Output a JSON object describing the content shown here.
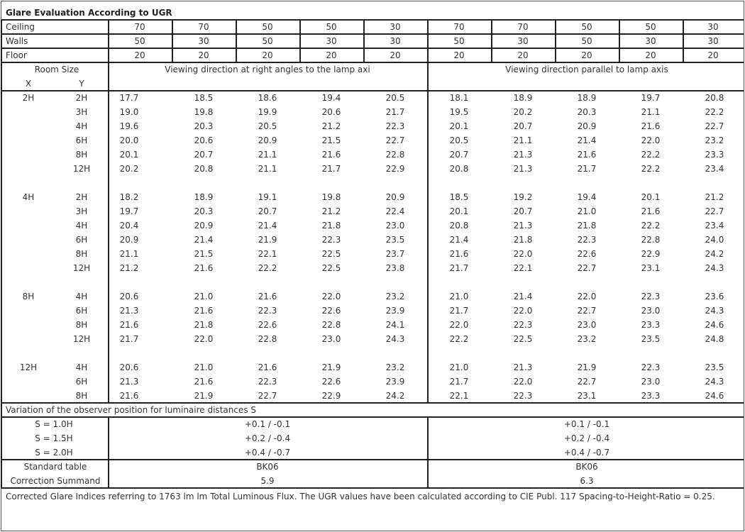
{
  "title": "Glare Evaluation According to UGR",
  "reflectances": [
    {
      "label": "Ceiling",
      "values": [
        "70",
        "70",
        "50",
        "50",
        "30",
        "70",
        "70",
        "50",
        "50",
        "30"
      ]
    },
    {
      "label": "Walls",
      "values": [
        "50",
        "30",
        "50",
        "30",
        "30",
        "50",
        "30",
        "50",
        "30",
        "30"
      ]
    },
    {
      "label": "Floor",
      "values": [
        "20",
        "20",
        "20",
        "20",
        "20",
        "20",
        "20",
        "20",
        "20",
        "20"
      ]
    }
  ],
  "room_size": {
    "label": "Room Size",
    "x": "X",
    "y": "Y"
  },
  "direction_headers": [
    "Viewing direction at right angles to the lamp axi",
    "Viewing direction parallel to lamp axis"
  ],
  "groups": [
    {
      "x": "2H",
      "rows": [
        {
          "y": "2H",
          "values": [
            "17.7",
            "18.5",
            "18.6",
            "19.4",
            "20.5",
            "18.1",
            "18.9",
            "18.9",
            "19.7",
            "20.8"
          ]
        },
        {
          "y": "3H",
          "values": [
            "19.0",
            "19.8",
            "19.9",
            "20.6",
            "21.7",
            "19.5",
            "20.2",
            "20.3",
            "21.1",
            "22.2"
          ]
        },
        {
          "y": "4H",
          "values": [
            "19.6",
            "20.3",
            "20.5",
            "21.2",
            "22.3",
            "20.1",
            "20.7",
            "20.9",
            "21.6",
            "22.7"
          ]
        },
        {
          "y": "6H",
          "values": [
            "20.0",
            "20.6",
            "20.9",
            "21.5",
            "22.7",
            "20.5",
            "21.1",
            "21.4",
            "22.0",
            "23.2"
          ]
        },
        {
          "y": "8H",
          "values": [
            "20.1",
            "20.7",
            "21.1",
            "21.6",
            "22.8",
            "20.7",
            "21.3",
            "21.6",
            "22.2",
            "23.3"
          ]
        },
        {
          "y": "12H",
          "values": [
            "20.2",
            "20.8",
            "21.1",
            "21.7",
            "22.9",
            "20.8",
            "21.3",
            "21.7",
            "22.2",
            "23.4"
          ]
        }
      ]
    },
    {
      "x": "4H",
      "rows": [
        {
          "y": "2H",
          "values": [
            "18.2",
            "18.9",
            "19.1",
            "19.8",
            "20.9",
            "18.5",
            "19.2",
            "19.4",
            "20.1",
            "21.2"
          ]
        },
        {
          "y": "3H",
          "values": [
            "19.7",
            "20.3",
            "20.7",
            "21.2",
            "22.4",
            "20.1",
            "20.7",
            "21.0",
            "21.6",
            "22.7"
          ]
        },
        {
          "y": "4H",
          "values": [
            "20.4",
            "20.9",
            "21.4",
            "21.8",
            "23.0",
            "20.8",
            "21.3",
            "21.8",
            "22.2",
            "23.4"
          ]
        },
        {
          "y": "6H",
          "values": [
            "20.9",
            "21.4",
            "21.9",
            "22.3",
            "23.5",
            "21.4",
            "21.8",
            "22.3",
            "22.8",
            "24.0"
          ]
        },
        {
          "y": "8H",
          "values": [
            "21.1",
            "21.5",
            "22.1",
            "22.5",
            "23.7",
            "21.6",
            "22.0",
            "22.6",
            "22.9",
            "24.2"
          ]
        },
        {
          "y": "12H",
          "values": [
            "21.2",
            "21.6",
            "22.2",
            "22.5",
            "23.8",
            "21.7",
            "22.1",
            "22.7",
            "23.1",
            "24.3"
          ]
        }
      ]
    },
    {
      "x": "8H",
      "rows": [
        {
          "y": "4H",
          "values": [
            "20.6",
            "21.0",
            "21.6",
            "22.0",
            "23.2",
            "21.0",
            "21.4",
            "22.0",
            "22.3",
            "23.6"
          ]
        },
        {
          "y": "6H",
          "values": [
            "21.3",
            "21.6",
            "22.3",
            "22.6",
            "23.9",
            "21.7",
            "22.0",
            "22.7",
            "23.0",
            "24.3"
          ]
        },
        {
          "y": "8H",
          "values": [
            "21.6",
            "21.8",
            "22.6",
            "22.8",
            "24.1",
            "22.0",
            "22.3",
            "23.0",
            "23.3",
            "24.6"
          ]
        },
        {
          "y": "12H",
          "values": [
            "21.7",
            "22.0",
            "22.8",
            "23.0",
            "24.3",
            "22.2",
            "22.5",
            "23.2",
            "23.5",
            "24.8"
          ]
        }
      ]
    },
    {
      "x": "12H",
      "rows": [
        {
          "y": "4H",
          "values": [
            "20.6",
            "21.0",
            "21.6",
            "21.9",
            "23.2",
            "21.0",
            "21.3",
            "21.9",
            "22.3",
            "23.5"
          ]
        },
        {
          "y": "6H",
          "values": [
            "21.3",
            "21.6",
            "22.3",
            "22.6",
            "23.9",
            "21.7",
            "22.0",
            "22.7",
            "23.0",
            "24.3"
          ]
        },
        {
          "y": "8H",
          "values": [
            "21.6",
            "21.9",
            "22.7",
            "22.9",
            "24.2",
            "22.1",
            "22.3",
            "23.1",
            "23.3",
            "24.6"
          ]
        }
      ]
    }
  ],
  "variation": {
    "label": "Variation of the observer position for luminaire distances S",
    "rows": [
      {
        "label": "S = 1.0H",
        "perpendicular": "+0.1 / -0.1",
        "parallel": "+0.1 / -0.1"
      },
      {
        "label": "S = 1.5H",
        "perpendicular": "+0.2 / -0.4",
        "parallel": "+0.2 / -0.4"
      },
      {
        "label": "S = 2.0H",
        "perpendicular": "+0.4 / -0.7",
        "parallel": "+0.4 / -0.7"
      }
    ]
  },
  "standard_table": {
    "label": "Standard table",
    "perpendicular": "BK06",
    "parallel": "BK06"
  },
  "correction_summand": {
    "label": "Correction Summand",
    "perpendicular": "5.9",
    "parallel": "6.3"
  },
  "footnote": "Corrected Glare Indices referring to 1763 lm lm Total Luminous Flux. The UGR values have been calculated according to CIE Publ. 117    Spacing-to-Height-Ratio = 0.25."
}
